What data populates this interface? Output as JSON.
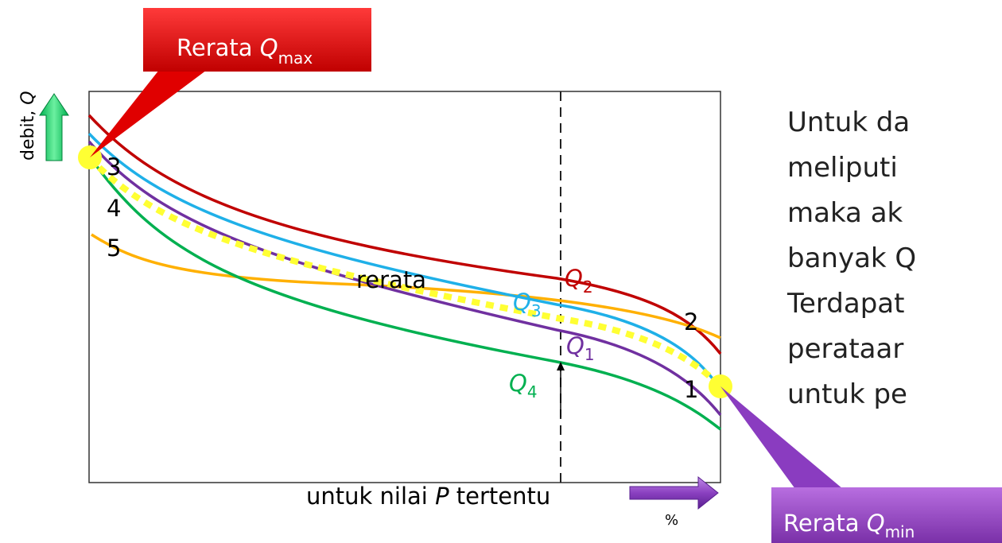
{
  "callouts": {
    "max": {
      "text": "Rerata ",
      "symbol": "Q",
      "sub": "max"
    },
    "min": {
      "text": "Rerata ",
      "symbol": "Q",
      "sub": "min"
    }
  },
  "axis": {
    "y": {
      "text": "debit, ",
      "symbol": "Q"
    },
    "x": {
      "text": "untuk nilai ",
      "symbol": "P",
      "rest": " tertentu"
    },
    "x_unit": "%"
  },
  "curve_labels": {
    "n3": "3",
    "n4": "4",
    "n5": "5",
    "n2": "2",
    "n1": "1",
    "rerata": "rerata",
    "q2": {
      "symbol": "Q",
      "sub": "2"
    },
    "q3": {
      "symbol": "Q",
      "sub": "3"
    },
    "q1": {
      "symbol": "Q",
      "sub": "1"
    },
    "q4": {
      "symbol": "Q",
      "sub": "4"
    }
  },
  "body": {
    "lines": [
      "Untuk da",
      "meliputi",
      "maka ak",
      "banyak Q",
      "Terdapat",
      "perataar",
      "untuk pe"
    ]
  }
}
